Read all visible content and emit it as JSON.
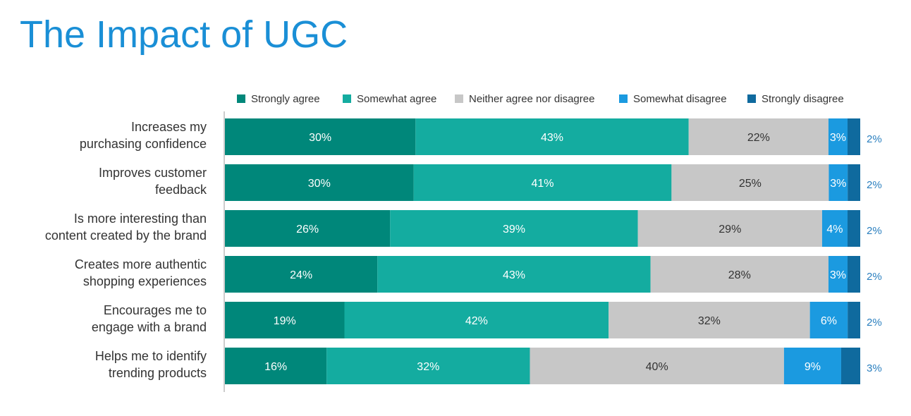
{
  "title": "The Impact of UGC",
  "chart_data": {
    "type": "bar",
    "orientation": "horizontal",
    "stacked": true,
    "categories": [
      [
        "Increases my",
        "purchasing confidence"
      ],
      [
        "Improves customer",
        "feedback"
      ],
      [
        "Is more interesting than",
        "content created by the brand"
      ],
      [
        "Creates more authentic",
        "shopping experiences"
      ],
      [
        "Encourages me to",
        "engage with a brand"
      ],
      [
        "Helps me to identify",
        "trending products"
      ]
    ],
    "series": [
      {
        "name": "Strongly agree",
        "color": "#00877a",
        "label_color": "#ffffff",
        "values": [
          30,
          30,
          26,
          24,
          19,
          16
        ]
      },
      {
        "name": "Somewhat agree",
        "color": "#14aca0",
        "label_color": "#ffffff",
        "values": [
          43,
          41,
          39,
          43,
          42,
          32
        ]
      },
      {
        "name": "Neither agree nor disagree",
        "color": "#c7c7c7",
        "label_color": "#333333",
        "values": [
          22,
          25,
          29,
          28,
          32,
          40
        ]
      },
      {
        "name": "Somewhat disagree",
        "color": "#1b9ae0",
        "label_color": "#ffffff",
        "values": [
          3,
          3,
          4,
          3,
          6,
          9
        ]
      },
      {
        "name": "Strongly disagree",
        "color": "#0f6a9e",
        "label_color": "#2a7fbf",
        "values": [
          2,
          2,
          2,
          2,
          2,
          3
        ]
      }
    ],
    "value_suffix": "%",
    "legend_position": "top",
    "grid": false
  }
}
